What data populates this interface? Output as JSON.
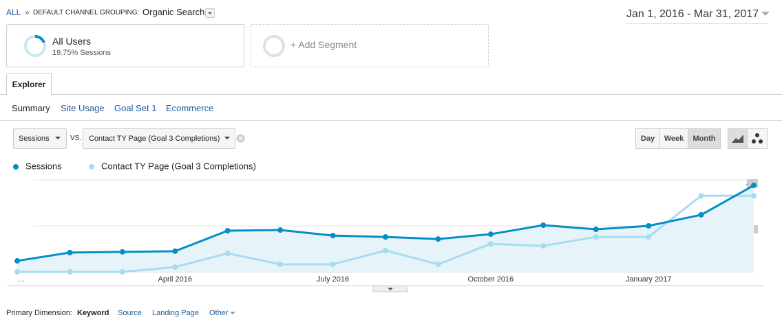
{
  "header": {
    "all": "ALL",
    "separator": "»",
    "grouping_label": "DEFAULT CHANNEL GROUPING:",
    "grouping_value": "Organic Search",
    "date_range": "Jan 1, 2016 - Mar 31, 2017"
  },
  "segments": [
    {
      "name": "All Users",
      "detail": "19.75% Sessions"
    },
    {
      "name": "+ Add Segment"
    }
  ],
  "tabs": [
    "Explorer"
  ],
  "subtabs": [
    "Summary",
    "Site Usage",
    "Goal Set 1",
    "Ecommerce"
  ],
  "controls": {
    "metric": "Sessions",
    "vs": "VS.",
    "compare_metric": "Contact TY Page (Goal 3 Completions)",
    "granularity": [
      "Day",
      "Week",
      "Month"
    ]
  },
  "chart_data": {
    "type": "line",
    "categories": [
      "…",
      null,
      null,
      "April 2016",
      null,
      null,
      "July 2016",
      null,
      null,
      "October 2016",
      null,
      null,
      "January 2017",
      null,
      null
    ],
    "series": [
      {
        "name": "Sessions",
        "color": "#058dc7",
        "values": [
          0.48,
          0.84,
          0.87,
          0.9,
          1.79,
          1.82,
          1.58,
          1.52,
          1.43,
          1.64,
          2.03,
          1.85,
          2.0,
          2.48,
          3.76
        ]
      },
      {
        "name": "Contact TY Page (Goal 3 Completions)",
        "color": "#a6dcf2",
        "values": [
          0,
          0,
          0,
          0.21,
          0.81,
          0.33,
          0.33,
          0.93,
          0.33,
          1.22,
          1.13,
          1.52,
          1.52,
          3.31,
          3.31
        ]
      }
    ],
    "ylim": [
      0,
      4
    ],
    "yticks": [
      2,
      4
    ],
    "grid": true
  },
  "primary_dimension": {
    "label": "Primary Dimension:",
    "options": [
      "Keyword",
      "Source",
      "Landing Page",
      "Other"
    ]
  }
}
